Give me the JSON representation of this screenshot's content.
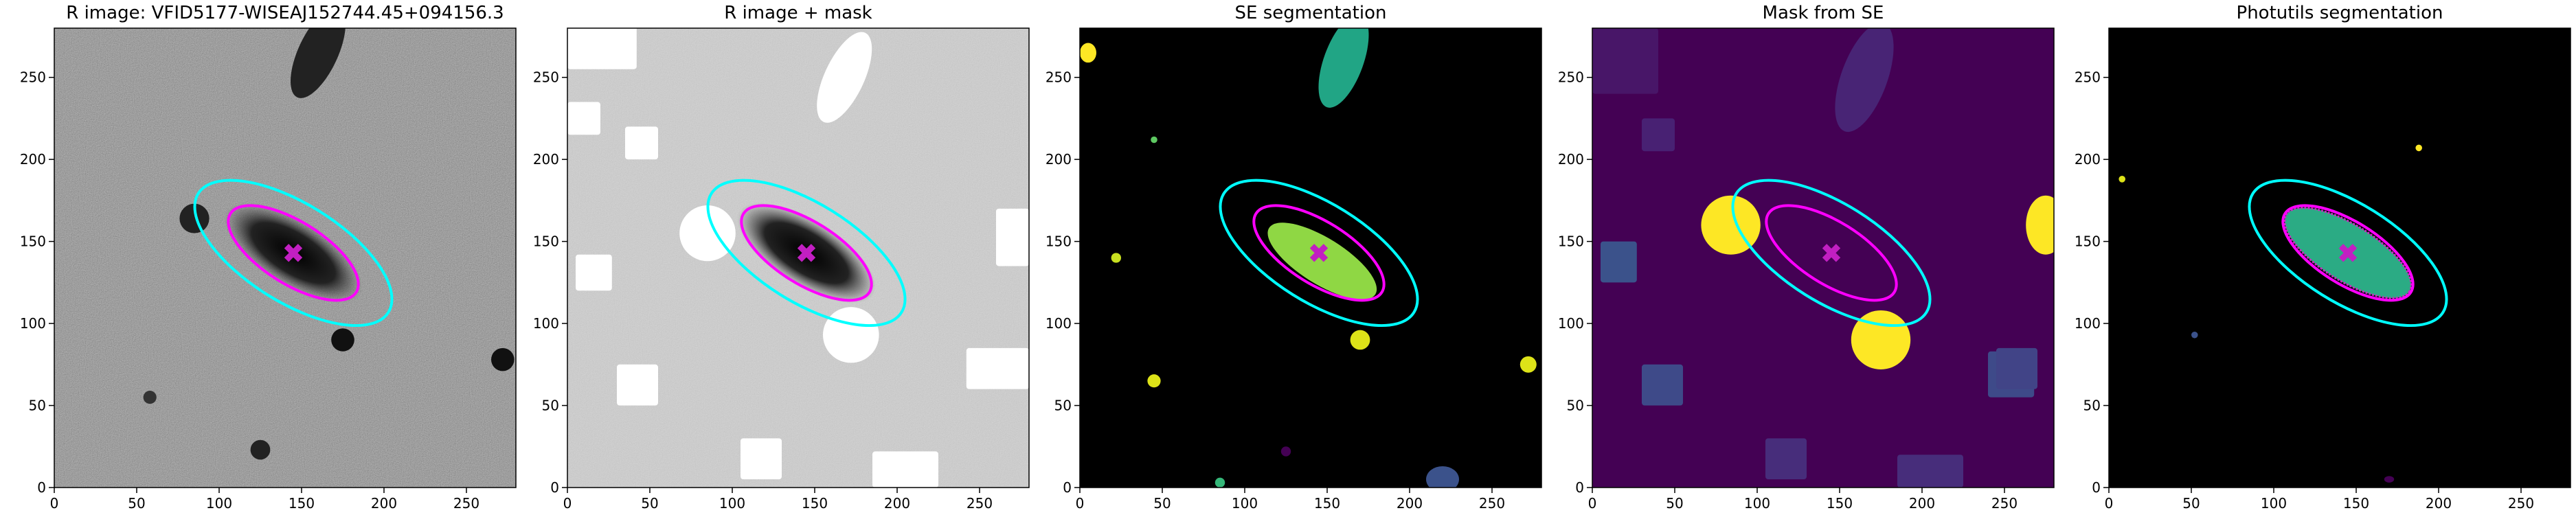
{
  "chart_data": [
    {
      "type": "image",
      "title": "R image: VFID5177-WISEAJ152744.45+094156.3",
      "xlim": [
        0,
        280
      ],
      "ylim": [
        0,
        280
      ],
      "xticks": [
        0,
        50,
        100,
        150,
        200,
        250
      ],
      "yticks": [
        0,
        50,
        100,
        150,
        200,
        250
      ]
    },
    {
      "type": "image",
      "title": "R image + mask",
      "xlim": [
        0,
        280
      ],
      "ylim": [
        0,
        280
      ],
      "xticks": [
        0,
        50,
        100,
        150,
        200,
        250
      ],
      "yticks": [
        0,
        50,
        100,
        150,
        200,
        250
      ]
    },
    {
      "type": "image",
      "title": "SE segmentation",
      "xlim": [
        0,
        280
      ],
      "ylim": [
        0,
        280
      ],
      "xticks": [
        0,
        50,
        100,
        150,
        200,
        250
      ],
      "yticks": [
        0,
        50,
        100,
        150,
        200,
        250
      ]
    },
    {
      "type": "image",
      "title": "Mask from SE",
      "xlim": [
        0,
        280
      ],
      "ylim": [
        0,
        280
      ],
      "xticks": [
        0,
        50,
        100,
        150,
        200,
        250
      ],
      "yticks": [
        0,
        50,
        100,
        150,
        200,
        250
      ]
    },
    {
      "type": "image",
      "title": "Photutils segmentation",
      "xlim": [
        0,
        280
      ],
      "ylim": [
        0,
        280
      ],
      "xticks": [
        0,
        50,
        100,
        150,
        200,
        250
      ],
      "yticks": [
        0,
        50,
        100,
        150,
        200,
        250
      ]
    }
  ]
}
